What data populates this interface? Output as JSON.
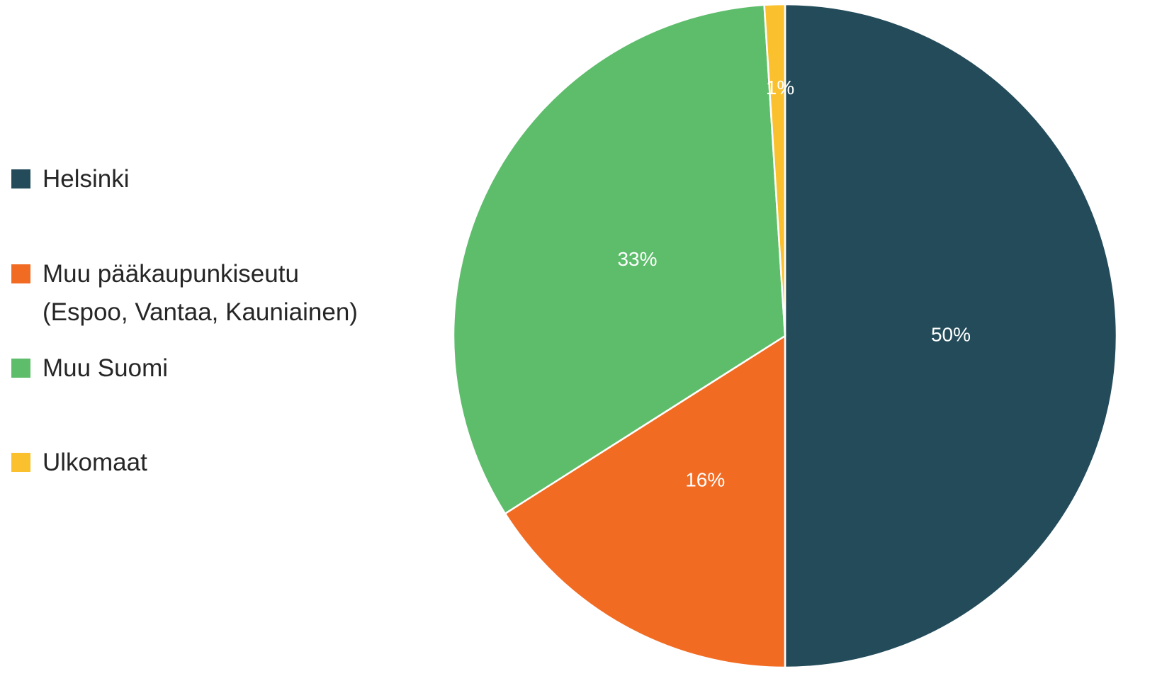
{
  "chart_data": {
    "type": "pie",
    "categories": [
      "Helsinki",
      "Muu pääkaupunkiseutu\n(Espoo, Vantaa, Kauniainen)",
      "Muu Suomi",
      "Ulkomaat"
    ],
    "values": [
      50,
      16,
      33,
      1
    ],
    "value_labels": [
      "50%",
      "16%",
      "33%",
      "1%"
    ],
    "colors": [
      "#234b5a",
      "#f26b23",
      "#5dbd6a",
      "#fbc02d"
    ],
    "legend": "left"
  }
}
